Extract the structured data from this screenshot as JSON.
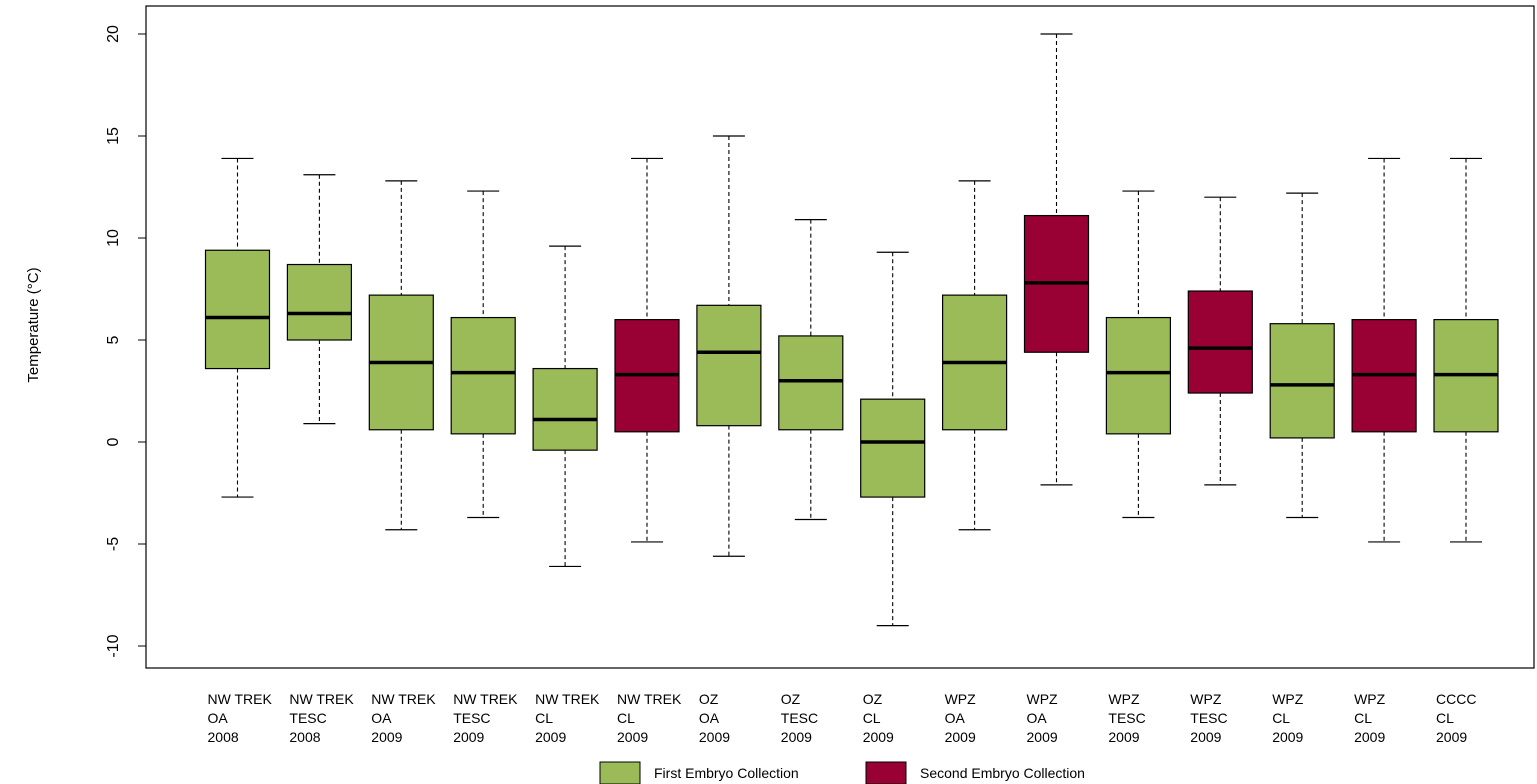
{
  "chart_data": {
    "type": "boxplot",
    "title": "",
    "xlabel": "",
    "ylabel": "Temperature (°C)",
    "ylim": [
      -11.1,
      21.4
    ],
    "yticks": [
      {
        "value": 20,
        "label": "20"
      },
      {
        "value": 15,
        "label": "15"
      },
      {
        "value": 10,
        "label": "10"
      },
      {
        "value": 5,
        "label": "5"
      },
      {
        "value": 0,
        "label": "0"
      },
      {
        "value": -5,
        "label": "-5"
      },
      {
        "value": -10,
        "label": "-10"
      }
    ],
    "grid": false,
    "legend": {
      "position": "bottom",
      "entries": [
        {
          "key": "first",
          "label": "First Embryo Collection",
          "color": "#9bbb59"
        },
        {
          "key": "second",
          "label": "Second Embryo Collection",
          "color": "#990033"
        }
      ]
    },
    "boxes": [
      {
        "lines": [
          "NW TREK",
          "OA",
          "2008"
        ],
        "group": "first",
        "min": -2.7,
        "q1": 3.6,
        "median": 6.1,
        "q3": 9.4,
        "max": 13.9
      },
      {
        "lines": [
          "NW TREK",
          "TESC",
          "2008"
        ],
        "group": "first",
        "min": 0.9,
        "q1": 5.0,
        "median": 6.3,
        "q3": 8.7,
        "max": 13.1
      },
      {
        "lines": [
          "NW TREK",
          "OA",
          "2009"
        ],
        "group": "first",
        "min": -4.3,
        "q1": 0.6,
        "median": 3.9,
        "q3": 7.2,
        "max": 12.8
      },
      {
        "lines": [
          "NW TREK",
          "TESC",
          "2009"
        ],
        "group": "first",
        "min": -3.7,
        "q1": 0.4,
        "median": 3.4,
        "q3": 6.1,
        "max": 12.3
      },
      {
        "lines": [
          "NW TREK",
          "CL",
          "2009"
        ],
        "group": "first",
        "min": -6.1,
        "q1": -0.4,
        "median": 1.1,
        "q3": 3.6,
        "max": 9.6
      },
      {
        "lines": [
          "NW TREK",
          "CL",
          "2009"
        ],
        "group": "second",
        "min": -4.9,
        "q1": 0.5,
        "median": 3.3,
        "q3": 6.0,
        "max": 13.9
      },
      {
        "lines": [
          "OZ",
          "OA",
          "2009"
        ],
        "group": "first",
        "min": -5.6,
        "q1": 0.8,
        "median": 4.4,
        "q3": 6.7,
        "max": 15.0
      },
      {
        "lines": [
          "OZ",
          "TESC",
          "2009"
        ],
        "group": "first",
        "min": -3.8,
        "q1": 0.6,
        "median": 3.0,
        "q3": 5.2,
        "max": 10.9
      },
      {
        "lines": [
          "OZ",
          "CL",
          "2009"
        ],
        "group": "first",
        "min": -9.0,
        "q1": -2.7,
        "median": 0.0,
        "q3": 2.1,
        "max": 9.3
      },
      {
        "lines": [
          "WPZ",
          "OA",
          "2009"
        ],
        "group": "first",
        "min": -4.3,
        "q1": 0.6,
        "median": 3.9,
        "q3": 7.2,
        "max": 12.8
      },
      {
        "lines": [
          "WPZ",
          "OA",
          "2009"
        ],
        "group": "second",
        "min": -2.1,
        "q1": 4.4,
        "median": 7.8,
        "q3": 11.1,
        "max": 20.0
      },
      {
        "lines": [
          "WPZ",
          "TESC",
          "2009"
        ],
        "group": "first",
        "min": -3.7,
        "q1": 0.4,
        "median": 3.4,
        "q3": 6.1,
        "max": 12.3
      },
      {
        "lines": [
          "WPZ",
          "TESC",
          "2009"
        ],
        "group": "second",
        "min": -2.1,
        "q1": 2.4,
        "median": 4.6,
        "q3": 7.4,
        "max": 12.0
      },
      {
        "lines": [
          "WPZ",
          "CL",
          "2009"
        ],
        "group": "first",
        "min": -3.7,
        "q1": 0.2,
        "median": 2.8,
        "q3": 5.8,
        "max": 12.2
      },
      {
        "lines": [
          "WPZ",
          "CL",
          "2009"
        ],
        "group": "second",
        "min": -4.9,
        "q1": 0.5,
        "median": 3.3,
        "q3": 6.0,
        "max": 13.9
      },
      {
        "lines": [
          "CCCC",
          "CL",
          "2009"
        ],
        "group": "first",
        "min": -4.9,
        "q1": 0.5,
        "median": 3.3,
        "q3": 6.0,
        "max": 13.9
      }
    ]
  }
}
